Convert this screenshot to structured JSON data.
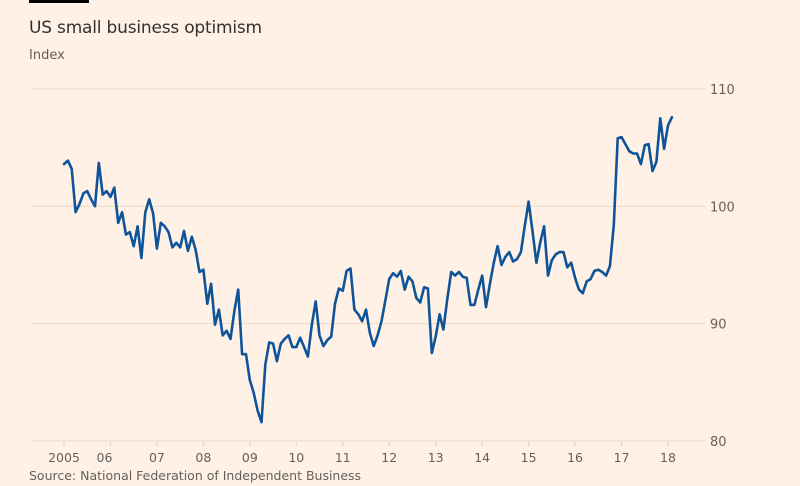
{
  "chart_data": {
    "type": "line",
    "title": "US small business optimism",
    "subtitle": "Index",
    "source": "Source: National Federation of Independent Business",
    "xlabel": "",
    "ylabel": "Index",
    "ylim": [
      80,
      110
    ],
    "yticks": [
      80,
      90,
      100,
      110
    ],
    "ytick_labels": [
      "80",
      "90",
      "100",
      "110"
    ],
    "xlim": [
      2004.25,
      2018.75
    ],
    "xticks": [
      2005,
      2006,
      2007,
      2008,
      2009,
      2010,
      2011,
      2012,
      2013,
      2014,
      2015,
      2016,
      2017,
      2018
    ],
    "xtick_labels": [
      "2005",
      "06",
      "07",
      "08",
      "09",
      "10",
      "11",
      "12",
      "13",
      "14",
      "15",
      "16",
      "17",
      "18"
    ],
    "grid": true,
    "y_axis_side": "right",
    "series": [
      {
        "name": "US small business optimism index",
        "color": "#0f5499",
        "start": "2005-01",
        "frequency": "monthly",
        "values": [
          103.6,
          103.9,
          103.2,
          99.5,
          100.2,
          101.1,
          101.3,
          100.6,
          100.0,
          103.7,
          101.0,
          101.3,
          100.8,
          101.6,
          98.6,
          99.5,
          97.6,
          97.8,
          96.6,
          98.3,
          95.6,
          99.5,
          100.6,
          99.4,
          96.4,
          98.6,
          98.3,
          97.8,
          96.5,
          96.9,
          96.5,
          97.9,
          96.2,
          97.4,
          96.3,
          94.4,
          94.6,
          91.7,
          93.4,
          89.9,
          91.2,
          89.0,
          89.4,
          88.7,
          91.1,
          92.9,
          87.4,
          87.4,
          85.2,
          84.1,
          82.6,
          81.6,
          86.5,
          88.4,
          88.3,
          86.8,
          88.3,
          88.7,
          89.0,
          88.0,
          88.0,
          88.8,
          88.0,
          87.2,
          89.9,
          91.9,
          89.0,
          88.1,
          88.6,
          88.9,
          91.7,
          93.0,
          92.8,
          94.5,
          94.7,
          91.2,
          90.8,
          90.2,
          91.2,
          89.2,
          88.1,
          89.0,
          90.2,
          92.0,
          93.8,
          94.3,
          94.0,
          94.5,
          92.9,
          94.0,
          93.6,
          92.2,
          91.8,
          93.1,
          93.0,
          87.5,
          88.9,
          90.8,
          89.5,
          92.1,
          94.4,
          94.1,
          94.4,
          94.0,
          93.9,
          91.6,
          91.6,
          92.9,
          94.1,
          91.4,
          93.4,
          95.2,
          96.6,
          95.0,
          95.7,
          96.1,
          95.3,
          95.5,
          96.1,
          98.3,
          100.4,
          97.9,
          95.2,
          96.9,
          98.3,
          94.1,
          95.4,
          95.9,
          96.1,
          96.1,
          94.8,
          95.2,
          93.9,
          92.9,
          92.6,
          93.6,
          93.8,
          94.5,
          94.6,
          94.4,
          94.1,
          94.9,
          98.4,
          105.8,
          105.9,
          105.3,
          104.7,
          104.5,
          104.5,
          103.6,
          105.2,
          105.3,
          103.0,
          103.8,
          107.5,
          104.9,
          106.9,
          107.6
        ]
      }
    ]
  }
}
